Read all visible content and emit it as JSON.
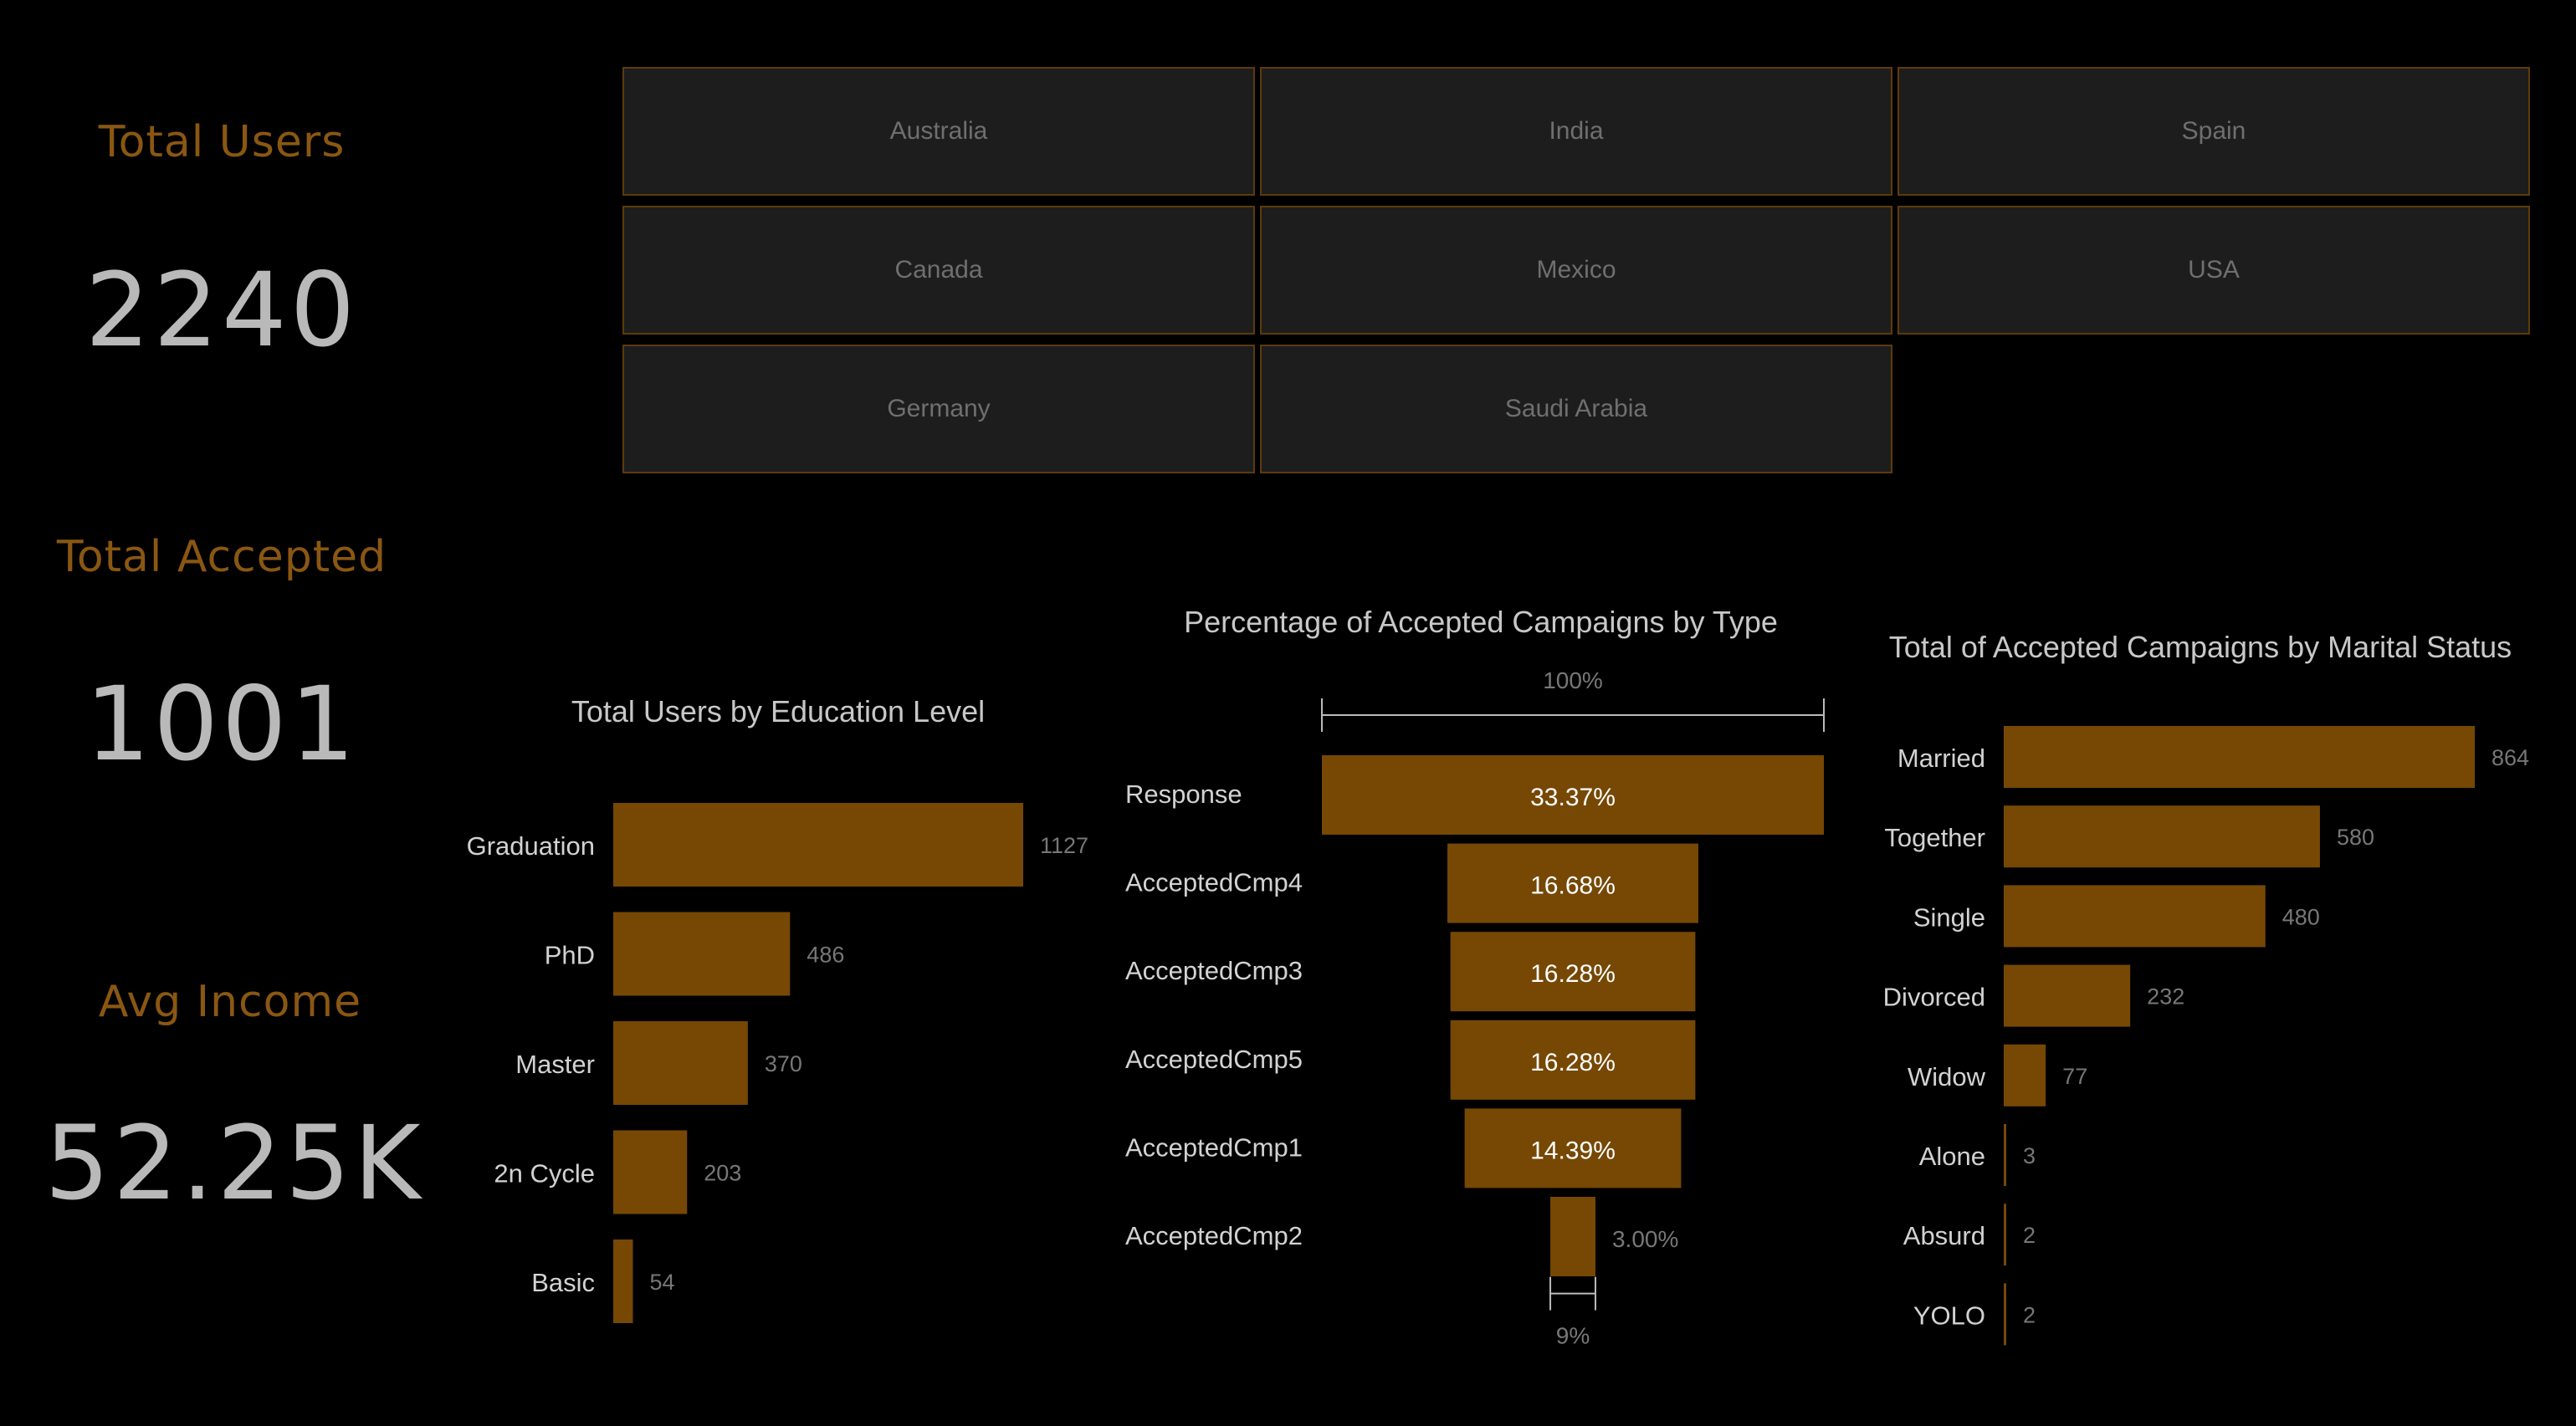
{
  "kpis": {
    "total_users": {
      "label": "Total Users",
      "value": "2240"
    },
    "total_accepted": {
      "label": "Total Accepted",
      "value": "1001"
    },
    "avg_income": {
      "label": "Avg Income",
      "value": "52.25K"
    }
  },
  "country_slicer": {
    "items": [
      "Australia",
      "India",
      "Spain",
      "Canada",
      "Mexico",
      "USA",
      "Germany",
      "Saudi Arabia"
    ]
  },
  "colors": {
    "accent": "#764804",
    "kpi_title": "#8a5712",
    "kpi_value": "#b9b9b9",
    "background": "#000000"
  },
  "chart_data": [
    {
      "type": "bar",
      "title": "Total Users by Education Level",
      "categories": [
        "Graduation",
        "PhD",
        "Master",
        "2n Cycle",
        "Basic"
      ],
      "values": [
        1127,
        486,
        370,
        203,
        54
      ],
      "orientation": "horizontal",
      "data_labels": true
    },
    {
      "type": "funnel",
      "title": "Percentage of Accepted Campaigns by Type",
      "categories": [
        "Response",
        "AcceptedCmp4",
        "AcceptedCmp3",
        "AcceptedCmp5",
        "AcceptedCmp1",
        "AcceptedCmp2"
      ],
      "values": [
        33.37,
        16.68,
        16.28,
        16.28,
        14.39,
        3.0
      ],
      "value_labels": [
        "33.37%",
        "16.68%",
        "16.28%",
        "16.28%",
        "14.39%",
        "3.00%"
      ],
      "top_bracket_label": "100%",
      "bottom_bracket_label": "9%"
    },
    {
      "type": "bar",
      "title": "Total of Accepted Campaigns by Marital Status",
      "categories": [
        "Married",
        "Together",
        "Single",
        "Divorced",
        "Widow",
        "Alone",
        "Absurd",
        "YOLO"
      ],
      "values": [
        864,
        580,
        480,
        232,
        77,
        3,
        2,
        2
      ],
      "orientation": "horizontal",
      "data_labels": true
    }
  ]
}
